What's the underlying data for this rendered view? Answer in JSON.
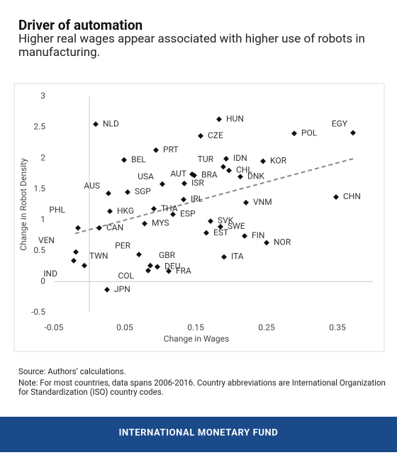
{
  "chart_data": {
    "type": "scatter",
    "title": "Driver of automation",
    "subtitle": "Higher real wages appear associated with higher use of robots in manufacturing.",
    "x_label": "Change in Wages",
    "y_label": "Change in Robot Density",
    "xlim": [
      -0.05,
      0.4
    ],
    "ylim": [
      -0.5,
      3
    ],
    "xticks": [
      -0.05,
      0.05,
      0.15,
      0.25,
      0.35
    ],
    "yticks": [
      -0.5,
      0,
      0.5,
      1,
      1.5,
      2,
      2.5,
      3
    ],
    "color": "#111111",
    "labels": [
      "NLD",
      "HUN",
      "EGY",
      "POL",
      "CZE",
      "PRT",
      "IDN",
      "BEL",
      "KOR",
      "TUR",
      "CHL",
      "DNK",
      "AUT",
      "BRA",
      "USA",
      "ISR",
      "AUS",
      "SGP",
      "IRL",
      "CHN",
      "VNM",
      "HKG",
      "THA",
      "ESP",
      "SVK",
      "PHL",
      "CAN",
      "MYS",
      "SWE",
      "EST",
      "FIN",
      "NOR",
      "VEN",
      "TWN",
      "IND",
      "PER",
      "ITA",
      "GBR",
      "DEU",
      "COL",
      "FRA",
      "JPN"
    ],
    "x": [
      0.009,
      0.183,
      0.372,
      0.289,
      0.157,
      0.094,
      0.193,
      0.049,
      0.245,
      0.189,
      0.197,
      0.213,
      0.145,
      0.148,
      0.103,
      0.134,
      0.027,
      0.054,
      0.133,
      0.348,
      0.221,
      0.029,
      0.091,
      0.118,
      0.171,
      -0.016,
      0.014,
      0.078,
      0.185,
      0.165,
      0.219,
      0.25,
      -0.019,
      -0.022,
      -0.007,
      0.07,
      0.19,
      0.086,
      0.096,
      0.083,
      0.112,
      0.025
    ],
    "values": [
      2.55,
      2.63,
      2.41,
      2.4,
      2.36,
      2.13,
      1.99,
      1.97,
      1.95,
      1.86,
      1.8,
      1.7,
      1.74,
      1.72,
      1.58,
      1.59,
      1.43,
      1.45,
      1.33,
      1.37,
      1.28,
      1.14,
      1.18,
      1.09,
      0.98,
      0.87,
      0.87,
      0.94,
      0.89,
      0.79,
      0.74,
      0.63,
      0.48,
      0.34,
      0.26,
      0.44,
      0.4,
      0.26,
      0.24,
      0.18,
      0.17,
      -0.13
    ],
    "trendline": {
      "x": [
        -0.02,
        0.375
      ],
      "y": [
        0.78,
        2.0
      ]
    },
    "source": "Source: Authors’ calculations.",
    "note": "Note: For most countries, data spans 2006-2016. Country abbreviations are International Organization for Standardization (ISO) country codes.",
    "footer": "INTERNATIONAL MONETARY FUND"
  }
}
